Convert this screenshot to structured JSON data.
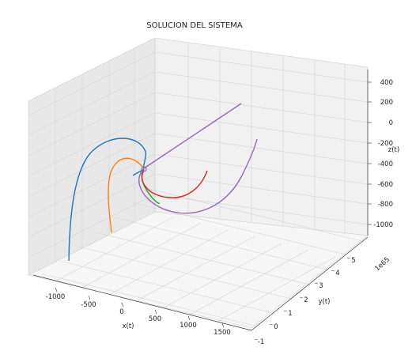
{
  "chart_data": {
    "type": "line",
    "projection": "3d",
    "title": "SOLUCION DEL SISTEMA",
    "xlabel": "x(t)",
    "ylabel": "y(t)",
    "zlabel": "z(t)",
    "y_offset_label": "1e65",
    "xlim": [
      -1300,
      1700
    ],
    "ylim": [
      -1,
      6
    ],
    "zlim": [
      -1150,
      500
    ],
    "x_ticks": [
      "-1000",
      "-500",
      "0",
      "500",
      "1000",
      "1500"
    ],
    "y_ticks": [
      "-1",
      "0",
      "1",
      "2",
      "3",
      "4",
      "5"
    ],
    "z_ticks": [
      "400",
      "200",
      "0",
      "-200",
      "-400",
      "-600",
      "-800",
      "-1000"
    ],
    "grid": true,
    "series": [
      {
        "color": "#1f77b4"
      },
      {
        "color": "#ff7f0e"
      },
      {
        "color": "#2ca02c"
      },
      {
        "color": "#d62728"
      },
      {
        "color": "#9467bd"
      }
    ]
  }
}
